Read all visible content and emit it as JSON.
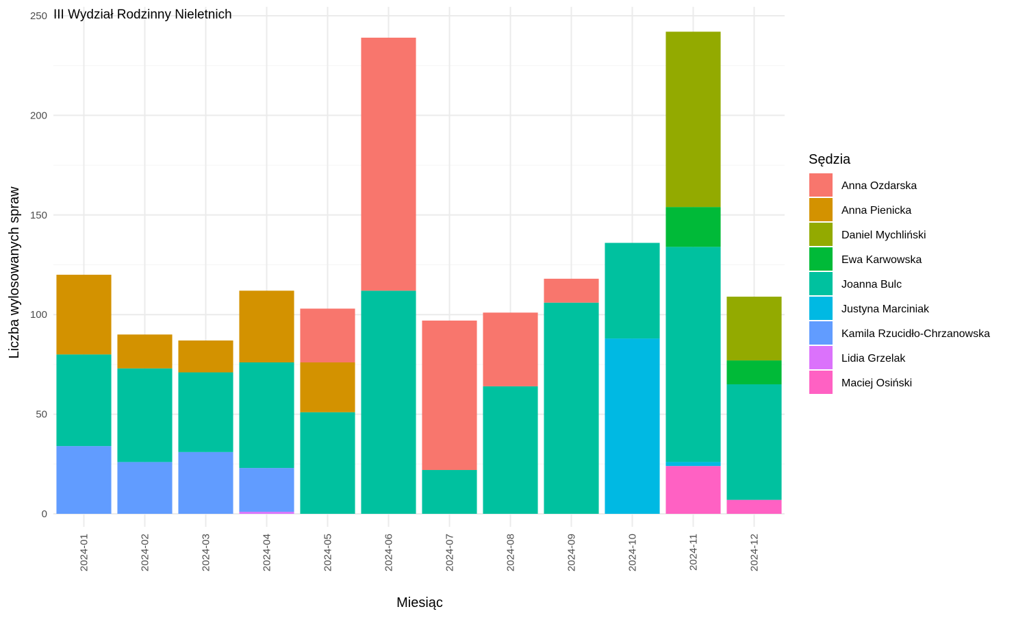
{
  "chart_data": {
    "type": "bar",
    "stacked": true,
    "title": "III Wydział Rodzinny Nieletnich",
    "xlabel": "Miesiąc",
    "ylabel": "Liczba wylosowanych spraw",
    "ylim": [
      0,
      255
    ],
    "yticks": [
      0,
      50,
      100,
      150,
      200,
      250
    ],
    "grid": true,
    "legend_title": "Sędzia",
    "legend_position": "right",
    "categories": [
      "2024-01",
      "2024-02",
      "2024-03",
      "2024-04",
      "2024-05",
      "2024-06",
      "2024-07",
      "2024-08",
      "2024-09",
      "2024-10",
      "2024-11",
      "2024-12"
    ],
    "series": [
      {
        "name": "Anna Ozdarska",
        "color": "#F8766D",
        "values": [
          0,
          0,
          0,
          0,
          27,
          127,
          75,
          37,
          12,
          0,
          0,
          0
        ]
      },
      {
        "name": "Anna Pienicka",
        "color": "#D39200",
        "values": [
          40,
          17,
          16,
          36,
          25,
          0,
          0,
          0,
          0,
          0,
          0,
          0
        ]
      },
      {
        "name": "Daniel Mychliński",
        "color": "#93AA00",
        "values": [
          0,
          0,
          0,
          0,
          0,
          0,
          0,
          0,
          0,
          0,
          88,
          32
        ]
      },
      {
        "name": "Ewa Karwowska",
        "color": "#00BA38",
        "values": [
          0,
          0,
          0,
          0,
          0,
          0,
          0,
          0,
          0,
          0,
          20,
          12
        ]
      },
      {
        "name": "Joanna Bulc",
        "color": "#00C19F",
        "values": [
          46,
          47,
          40,
          53,
          51,
          112,
          22,
          64,
          106,
          48,
          108,
          58
        ]
      },
      {
        "name": "Justyna Marciniak",
        "color": "#00B9E3",
        "values": [
          0,
          0,
          0,
          0,
          0,
          0,
          0,
          0,
          0,
          88,
          2,
          0
        ]
      },
      {
        "name": "Kamila Rzucidło-Chrzanowska",
        "color": "#619CFF",
        "values": [
          34,
          26,
          31,
          22,
          0,
          0,
          0,
          0,
          0,
          0,
          0,
          0
        ]
      },
      {
        "name": "Lidia Grzelak",
        "color": "#DB72FB",
        "values": [
          0,
          0,
          0,
          1,
          0,
          0,
          0,
          0,
          0,
          0,
          0,
          0
        ]
      },
      {
        "name": "Maciej Osiński",
        "color": "#FF61C3",
        "values": [
          0,
          0,
          0,
          0,
          0,
          0,
          0,
          0,
          0,
          0,
          24,
          7
        ]
      }
    ]
  }
}
